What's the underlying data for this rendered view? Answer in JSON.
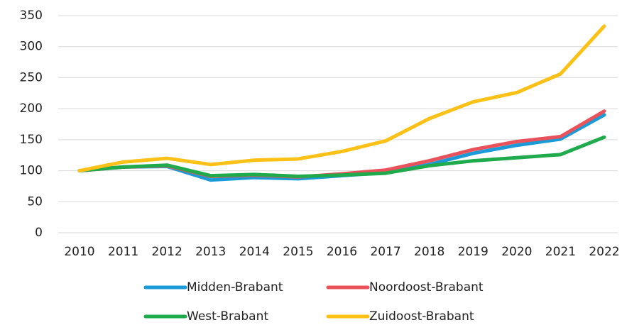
{
  "chart_data": {
    "type": "line",
    "categories": [
      "2010",
      "2011",
      "2012",
      "2013",
      "2014",
      "2015",
      "2016",
      "2017",
      "2018",
      "2019",
      "2020",
      "2021",
      "2022"
    ],
    "series": [
      {
        "name": "Midden-Brabant",
        "color": "#1a9bd7",
        "values": [
          100,
          106,
          107,
          85,
          89,
          87,
          92,
          97,
          110,
          128,
          141,
          151,
          190
        ]
      },
      {
        "name": "Noordoost-Brabant",
        "color": "#e9525a",
        "values": [
          100,
          106,
          108,
          91,
          93,
          90,
          95,
          101,
          116,
          134,
          147,
          155,
          196
        ]
      },
      {
        "name": "West-Brabant",
        "color": "#1faa4b",
        "values": [
          100,
          106,
          109,
          92,
          94,
          91,
          93,
          96,
          108,
          116,
          121,
          126,
          154
        ]
      },
      {
        "name": "Zuidoost-Brabant",
        "color": "#fcc116",
        "values": [
          100,
          114,
          120,
          110,
          117,
          119,
          131,
          148,
          184,
          211,
          226,
          256,
          333
        ]
      }
    ],
    "ylim": [
      0,
      350
    ],
    "yticks": [
      0,
      50,
      100,
      150,
      200,
      250,
      300,
      350
    ],
    "grid": true,
    "legend": "bottom"
  }
}
